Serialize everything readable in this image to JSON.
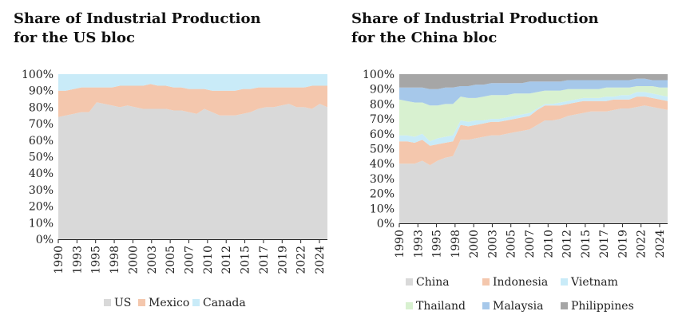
{
  "chart_data": [
    {
      "type": "area",
      "stacked": true,
      "title": "Share of Industrial Production for the US bloc",
      "title_lines": [
        "Share of Industrial Production",
        "for the US bloc"
      ],
      "x": [
        1990,
        1991,
        1992,
        1993,
        1994,
        1995,
        1996,
        1997,
        1998,
        1999,
        2000,
        2001,
        2002,
        2003,
        2004,
        2005,
        2006,
        2007,
        2008,
        2009,
        2010,
        2011,
        2012,
        2013,
        2014,
        2015,
        2016,
        2017,
        2018,
        2019,
        2020,
        2021,
        2022,
        2023,
        2024,
        2025
      ],
      "x_tick_labels": [
        "1990",
        "1993",
        "1995",
        "1998",
        "2000",
        "2003",
        "2005",
        "2007",
        "2010",
        "2012",
        "2015",
        "2017",
        "2019",
        "2022",
        "2024"
      ],
      "y_tick_labels": [
        "0%",
        "10%",
        "20%",
        "30%",
        "40%",
        "50%",
        "60%",
        "70%",
        "80%",
        "90%",
        "100%"
      ],
      "ylim": [
        0,
        100
      ],
      "grid": false,
      "legend": "bottom",
      "series": [
        {
          "name": "US",
          "color": "#d9d9d9",
          "values": [
            74,
            75,
            76,
            77,
            77,
            83,
            82,
            81,
            80,
            81,
            80,
            79,
            79,
            79,
            79,
            78,
            78,
            77,
            76,
            79,
            77,
            75,
            75,
            75,
            76,
            77,
            79,
            80,
            80,
            81,
            82,
            80,
            80,
            79,
            82,
            80
          ]
        },
        {
          "name": "Mexico",
          "color": "#f4c7ad",
          "values": [
            16,
            15,
            15,
            15,
            15,
            9,
            10,
            11,
            13,
            12,
            13,
            14,
            15,
            14,
            14,
            14,
            14,
            14,
            15,
            12,
            13,
            15,
            15,
            15,
            15,
            14,
            13,
            12,
            12,
            11,
            10,
            12,
            12,
            14,
            11,
            13
          ]
        },
        {
          "name": "Canada",
          "color": "#c9ebf8",
          "values": [
            10,
            10,
            9,
            8,
            8,
            8,
            8,
            8,
            7,
            7,
            7,
            7,
            6,
            7,
            7,
            8,
            8,
            9,
            9,
            9,
            10,
            10,
            10,
            10,
            9,
            9,
            8,
            8,
            8,
            8,
            8,
            8,
            8,
            7,
            7,
            7
          ]
        }
      ]
    },
    {
      "type": "area",
      "stacked": true,
      "title": "Share of Industrial Production for the China bloc",
      "title_lines": [
        "Share of Industrial Production",
        "for the China bloc"
      ],
      "x": [
        1990,
        1991,
        1992,
        1993,
        1994,
        1995,
        1996,
        1997,
        1998,
        1999,
        2000,
        2001,
        2002,
        2003,
        2004,
        2005,
        2006,
        2007,
        2008,
        2009,
        2010,
        2011,
        2012,
        2013,
        2014,
        2015,
        2016,
        2017,
        2018,
        2019,
        2020,
        2021,
        2022,
        2023,
        2024,
        2025
      ],
      "x_tick_labels": [
        "1990",
        "1993",
        "1995",
        "1998",
        "2000",
        "2003",
        "2005",
        "2007",
        "2010",
        "2012",
        "2015",
        "2017",
        "2019",
        "2022",
        "2024"
      ],
      "y_tick_labels": [
        "0%",
        "10%",
        "20%",
        "30%",
        "40%",
        "50%",
        "60%",
        "70%",
        "80%",
        "90%",
        "100%"
      ],
      "ylim": [
        0,
        100
      ],
      "grid": false,
      "legend": "bottom",
      "series": [
        {
          "name": "China",
          "color": "#d9d9d9",
          "values": [
            40,
            40,
            40,
            42,
            39,
            42,
            44,
            45,
            56,
            56,
            57,
            58,
            59,
            59,
            60,
            61,
            62,
            63,
            66,
            69,
            69,
            70,
            72,
            73,
            74,
            75,
            75,
            75,
            76,
            77,
            77,
            78,
            79,
            78,
            77,
            76
          ]
        },
        {
          "name": "Indonesia",
          "color": "#f4c7ad",
          "values": [
            15,
            15,
            14,
            14,
            13,
            11,
            10,
            10,
            10,
            9,
            9,
            9,
            9,
            9,
            9,
            9,
            9,
            9,
            10,
            10,
            10,
            9,
            8,
            8,
            8,
            7,
            7,
            7,
            7,
            6,
            6,
            7,
            6,
            6,
            6,
            6
          ]
        },
        {
          "name": "Vietnam",
          "color": "#c9ebf8",
          "values": [
            4,
            4,
            4,
            4,
            3,
            4,
            4,
            4,
            3,
            3,
            3,
            2,
            2,
            2,
            2,
            2,
            2,
            2,
            1,
            1,
            1,
            2,
            2,
            2,
            2,
            2,
            2,
            3,
            2,
            3,
            3,
            3,
            3,
            3,
            3,
            3
          ]
        },
        {
          "name": "Thailand",
          "color": "#d8f1d0",
          "values": [
            24,
            23,
            23,
            21,
            24,
            22,
            22,
            21,
            16,
            16,
            15,
            16,
            16,
            16,
            15,
            15,
            14,
            13,
            11,
            9,
            9,
            8,
            8,
            7,
            6,
            6,
            6,
            6,
            6,
            5,
            5,
            4,
            4,
            5,
            5,
            6
          ]
        },
        {
          "name": "Malaysia",
          "color": "#a6c8ea",
          "values": [
            8,
            9,
            10,
            10,
            11,
            11,
            11,
            11,
            7,
            8,
            9,
            8,
            8,
            8,
            8,
            7,
            7,
            8,
            7,
            6,
            6,
            6,
            6,
            6,
            6,
            6,
            6,
            5,
            5,
            5,
            5,
            5,
            5,
            4,
            5,
            5
          ]
        },
        {
          "name": "Philippines",
          "color": "#a6a6a6",
          "values": [
            9,
            9,
            9,
            9,
            10,
            10,
            9,
            9,
            8,
            8,
            7,
            7,
            6,
            6,
            6,
            6,
            6,
            5,
            5,
            5,
            5,
            5,
            4,
            4,
            4,
            4,
            4,
            4,
            4,
            4,
            4,
            3,
            3,
            4,
            4,
            4
          ]
        }
      ]
    }
  ]
}
